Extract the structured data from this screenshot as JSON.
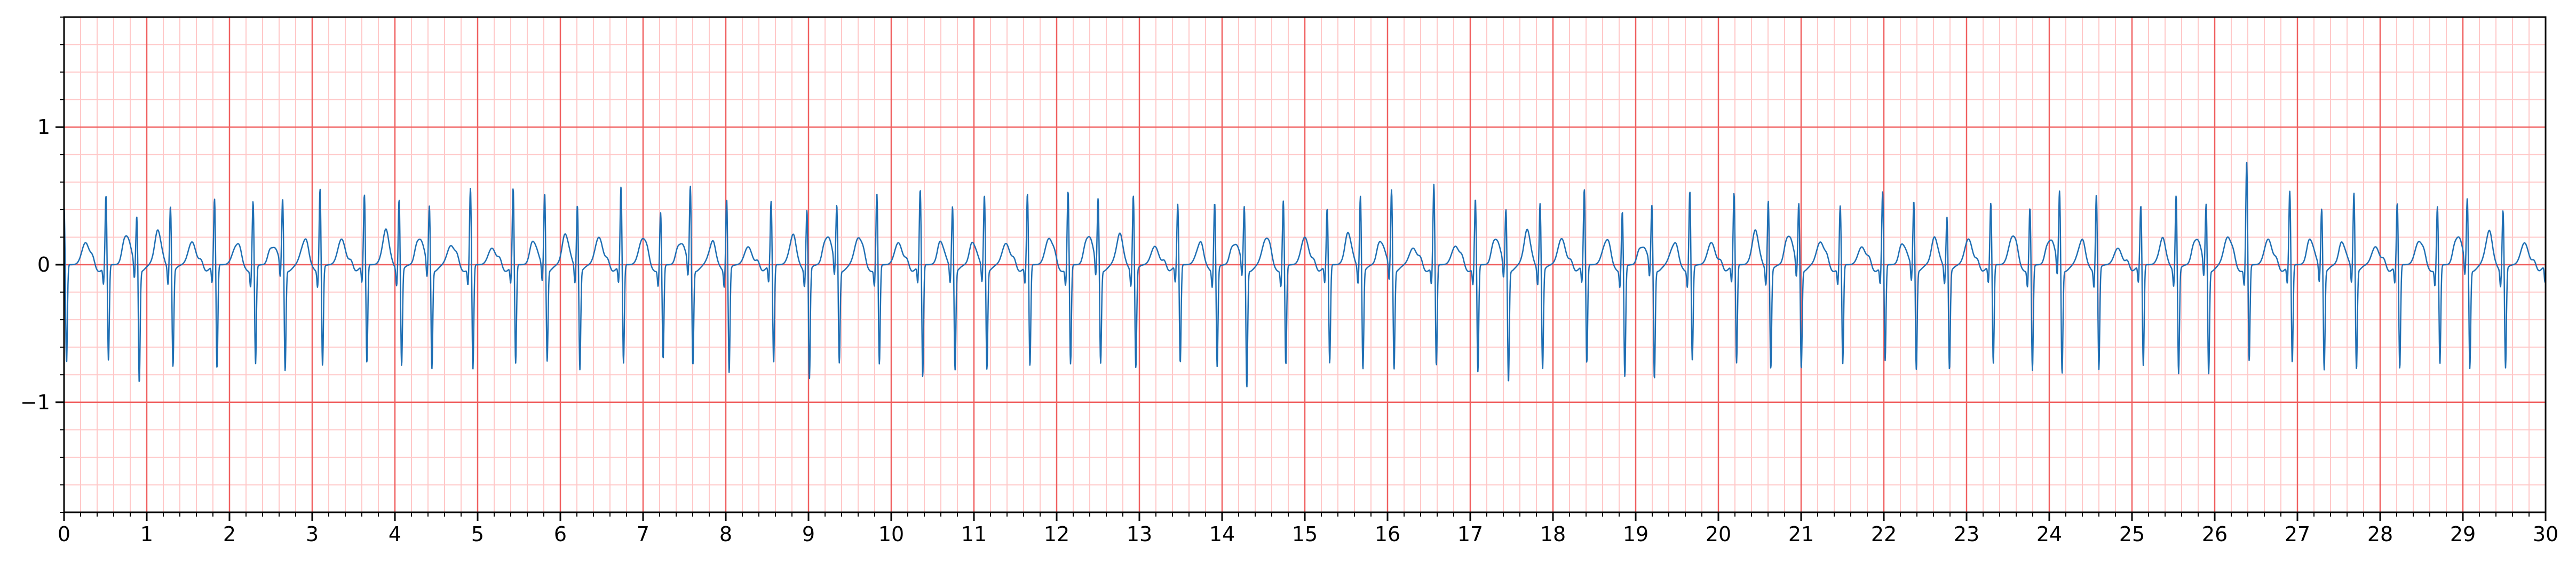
{
  "chart_data": {
    "type": "line",
    "title": "",
    "xlabel": "",
    "ylabel": "",
    "xlim": [
      0,
      30
    ],
    "ylim": [
      -1.8,
      1.8
    ],
    "x_ticks": [
      0,
      1,
      2,
      3,
      4,
      5,
      6,
      7,
      8,
      9,
      10,
      11,
      12,
      13,
      14,
      15,
      16,
      17,
      18,
      19,
      20,
      21,
      22,
      23,
      24,
      25,
      26,
      27,
      28,
      29,
      30
    ],
    "x_tick_labels": [
      "0",
      "1",
      "2",
      "3",
      "4",
      "5",
      "6",
      "7",
      "8",
      "9",
      "10",
      "11",
      "12",
      "13",
      "14",
      "15",
      "16",
      "17",
      "18",
      "19",
      "20",
      "21",
      "22",
      "23",
      "24",
      "25",
      "26",
      "27",
      "28",
      "29",
      "30"
    ],
    "y_ticks": [
      -1,
      0,
      1
    ],
    "y_tick_labels": [
      "−1",
      "0",
      "1"
    ],
    "grid": {
      "major": true,
      "major_x_step": 1,
      "major_y_step": 1,
      "minor": true,
      "minor_x_step": 0.2,
      "minor_y_step": 0.2,
      "major_color": "#f06060",
      "minor_color": "#ffc8c8"
    },
    "colors": {
      "trace": "#1f6fb4"
    },
    "series": [
      {
        "name": "",
        "beat_r_amplitudes": [
          0.45,
          0.52,
          0.38,
          0.48,
          0.49,
          0.5,
          0.5,
          0.6,
          0.52,
          0.53,
          0.45,
          0.58,
          0.57,
          0.56,
          0.48,
          0.58,
          0.41,
          0.59,
          0.53,
          0.47,
          0.45,
          0.45,
          0.55,
          0.56,
          0.47,
          0.55,
          0.53,
          0.56,
          0.5,
          0.56,
          0.45,
          0.5,
          0.44,
          0.5,
          0.42,
          0.55,
          0.58,
          0.6,
          0.5,
          0.43,
          0.5,
          0.56,
          0.43,
          0.45,
          0.58,
          0.53,
          0.52,
          0.47,
          0.45,
          0.55,
          0.5,
          0.4,
          0.46,
          0.45,
          0.55,
          0.56,
          0.44,
          0.56,
          0.46,
          0.78,
          0.55,
          0.45,
          0.57,
          0.46,
          0.45,
          0.5,
          0.45,
          0.42
        ],
        "beat_s_amplitudes": [
          -0.72,
          -0.7,
          -0.82,
          -0.7,
          -0.76,
          -0.71,
          -0.74,
          -0.72,
          -0.72,
          -0.7,
          -0.72,
          -0.76,
          -0.72,
          -0.66,
          -0.72,
          -0.72,
          -0.68,
          -0.7,
          -0.76,
          -0.72,
          -0.8,
          -0.68,
          -0.72,
          -0.82,
          -0.72,
          -0.72,
          -0.74,
          -0.72,
          -0.68,
          -0.72,
          -0.72,
          -0.72,
          -0.86,
          -0.72,
          -0.72,
          -0.72,
          -0.72,
          -0.74,
          -0.78,
          -0.82,
          -0.72,
          -0.72,
          -0.8,
          -0.8,
          -0.68,
          -0.72,
          -0.72,
          -0.72,
          -0.72,
          -0.7,
          -0.72,
          -0.72,
          -0.72,
          -0.76,
          -0.76,
          -0.74,
          -0.74,
          -0.76,
          -0.76,
          -0.7,
          -0.72,
          -0.72,
          -0.72,
          -0.76,
          -0.72,
          -0.72,
          -0.72,
          -0.72
        ]
      }
    ]
  }
}
